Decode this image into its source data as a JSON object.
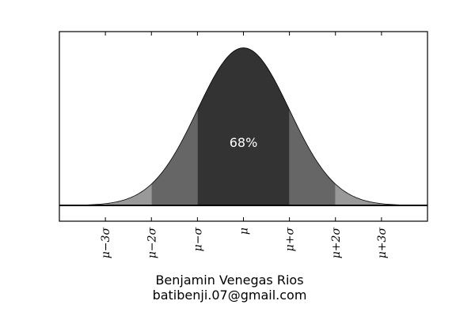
{
  "chart_data": {
    "type": "area",
    "title": "",
    "xlabel": "",
    "ylabel": "",
    "distribution": "normal",
    "xlim": [
      -4,
      4
    ],
    "ylim": [
      -0.04,
      0.44
    ],
    "peak_density": 0.3989,
    "tick_values": [
      -3,
      -2,
      -1,
      0,
      1,
      2,
      3
    ],
    "tick_labels": [
      "μ−3σ",
      "μ−2σ",
      "μ−σ",
      "μ",
      "μ+σ",
      "μ+2σ",
      "μ+3σ"
    ],
    "bands": [
      {
        "range": [
          -1,
          1
        ],
        "color": "#333333"
      },
      {
        "range": [
          -2,
          -1
        ],
        "color": "#666666"
      },
      {
        "range": [
          1,
          2
        ],
        "color": "#666666"
      },
      {
        "range": [
          -3,
          -2
        ],
        "color": "#999999"
      },
      {
        "range": [
          2,
          3
        ],
        "color": "#999999"
      },
      {
        "range": [
          -4,
          -3
        ],
        "color": "#cccccc"
      },
      {
        "range": [
          3,
          4
        ],
        "color": "#cccccc"
      }
    ],
    "annotation": {
      "text": "68%",
      "x": 0,
      "y": 0.16
    },
    "grid": false
  },
  "credits": {
    "name": "Benjamin Venegas Rios",
    "email": "batibenji.07@gmail.com"
  }
}
